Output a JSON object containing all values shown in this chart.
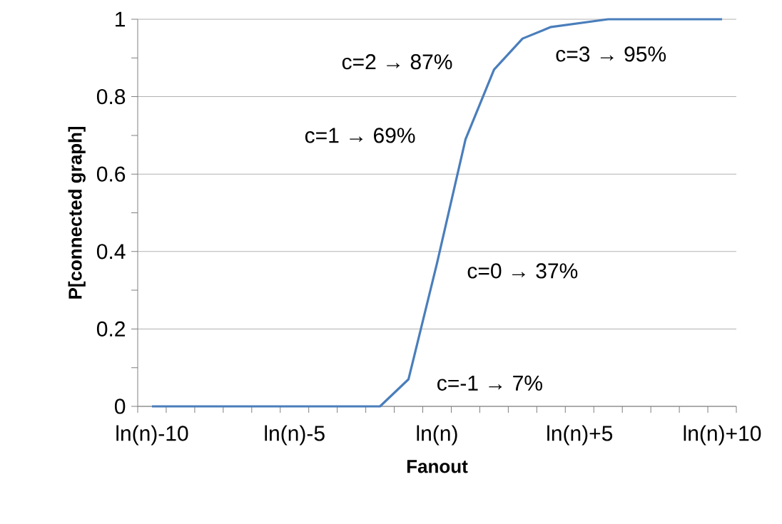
{
  "chart_data": {
    "type": "line",
    "xlabel": "Fanout",
    "ylabel": "P[connected graph]",
    "categories": [
      "ln(n)-10",
      null,
      null,
      null,
      null,
      "ln(n)-5",
      null,
      null,
      null,
      null,
      "ln(n)",
      null,
      null,
      null,
      null,
      "ln(n)+5",
      null,
      null,
      null,
      null,
      "ln(n)+10"
    ],
    "series": [
      {
        "color": "#4a7ebb",
        "values": [
          0,
          0,
          0,
          0,
          0,
          0,
          0,
          0,
          0,
          0.07,
          0.37,
          0.69,
          0.87,
          0.95,
          0.98,
          0.99,
          1,
          1,
          1,
          1,
          1
        ]
      }
    ],
    "ylim": [
      0,
      1
    ],
    "yticks": [
      0,
      0.2,
      0.4,
      0.6,
      0.8,
      1
    ],
    "grid": "y",
    "legend": false,
    "marker": "none",
    "line_style": "solid",
    "annotations": [
      "c=-1 → 7%",
      "c=0 → 37%",
      "c=1 → 69%",
      "c=2 → 87%",
      "c=3 → 95%"
    ]
  }
}
